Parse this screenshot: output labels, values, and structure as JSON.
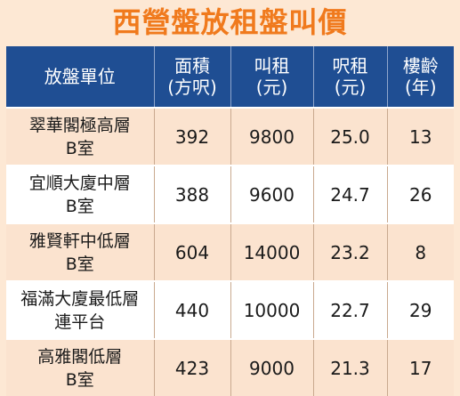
{
  "title": "西營盤放租盤叫價",
  "headers": [
    {
      "l1": "放盤單位",
      "l2": ""
    },
    {
      "l1": "面積",
      "l2": "(方呎)"
    },
    {
      "l1": "叫租",
      "l2": "(元)"
    },
    {
      "l1": "呎租",
      "l2": "(元)"
    },
    {
      "l1": "樓齡",
      "l2": "(年)"
    }
  ],
  "rows": [
    {
      "unit_line1": "翠華閣極高層",
      "unit_line2": "B室",
      "area": "392",
      "rent": "9800",
      "per_sqft": "25.0",
      "age": "13"
    },
    {
      "unit_line1": "宜順大廈中層",
      "unit_line2": "B室",
      "area": "388",
      "rent": "9600",
      "per_sqft": "24.7",
      "age": "26"
    },
    {
      "unit_line1": "雅賢軒中低層",
      "unit_line2": "B室",
      "area": "604",
      "rent": "14000",
      "per_sqft": "23.2",
      "age": "8"
    },
    {
      "unit_line1": "福滿大廈最低層",
      "unit_line2": "連平台",
      "area": "440",
      "rent": "10000",
      "per_sqft": "22.7",
      "age": "29"
    },
    {
      "unit_line1": "高雅閣低層",
      "unit_line2": "B室",
      "area": "423",
      "rent": "9000",
      "per_sqft": "21.3",
      "age": "17"
    }
  ],
  "colors": {
    "title": "#f07a1d",
    "header_bg": "#1f4e93",
    "row_odd_bg": "#fbe3cf",
    "row_even_bg": "#ffffff"
  }
}
